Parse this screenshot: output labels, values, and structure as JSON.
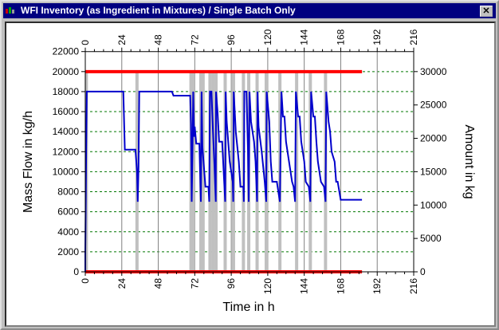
{
  "window": {
    "title": "WFI Inventory (as Ingredient in Mixtures) / Single Batch Only",
    "close_label": "✕",
    "title_bar_color": "#000080"
  },
  "chart_data": {
    "type": "line",
    "xlabel": "Time in h",
    "ylabel_left": "Mass Flow in kg/h",
    "ylabel_right": "Amount in kg",
    "xlim": [
      0,
      216
    ],
    "x_ticks": [
      "0",
      "24",
      "48",
      "72",
      "96",
      "120",
      "144",
      "168",
      "192",
      "216"
    ],
    "ylim_left": [
      0,
      22000
    ],
    "y_ticks_left": [
      "0",
      "2000",
      "4000",
      "6000",
      "8000",
      "10000",
      "12000",
      "14000",
      "16000",
      "18000",
      "20000",
      "22000"
    ],
    "ylim_right": [
      0,
      33000
    ],
    "y_ticks_right": [
      "0",
      "5000",
      "10000",
      "15000",
      "20000",
      "25000",
      "30000"
    ],
    "grid": true,
    "colors": {
      "inventory": "#0000cc",
      "limits": "#ff0000",
      "mass_flow": "#c0c0c0",
      "grid": "#007700"
    },
    "limit_lines_kg": [
      {
        "value": 30000,
        "x": [
          0,
          182
        ]
      },
      {
        "value": 0,
        "x": [
          0,
          182
        ]
      }
    ],
    "mass_flow_bars": {
      "value_kg_per_h": 20000,
      "times_h": [
        0.7,
        34,
        69.5,
        71,
        76,
        77.5,
        82,
        84,
        86,
        92,
        97.5,
        104,
        107.5,
        113,
        119,
        128,
        139,
        148,
        158
      ]
    },
    "inventory_series_kg_per_h_axis": [
      [
        0,
        0
      ],
      [
        0,
        2000
      ],
      [
        0.3,
        7000
      ],
      [
        0.6,
        12000
      ],
      [
        1,
        18000
      ],
      [
        25,
        18000
      ],
      [
        26,
        12200
      ],
      [
        33,
        12200
      ],
      [
        34,
        10000
      ],
      [
        34.5,
        7000
      ],
      [
        35,
        10500
      ],
      [
        35.5,
        18000
      ],
      [
        57,
        18000
      ],
      [
        58,
        17600
      ],
      [
        69,
        17600
      ],
      [
        69.5,
        14800
      ],
      [
        70,
        7000
      ],
      [
        70.5,
        12000
      ],
      [
        71,
        18000
      ],
      [
        71.5,
        13500
      ],
      [
        72,
        14500
      ],
      [
        73,
        12800
      ],
      [
        75,
        12800
      ],
      [
        75.5,
        10000
      ],
      [
        76,
        7000
      ],
      [
        76.5,
        18000
      ],
      [
        77,
        12500
      ],
      [
        78,
        10500
      ],
      [
        79,
        8500
      ],
      [
        81,
        8500
      ],
      [
        81.5,
        7000
      ],
      [
        82,
        18000
      ],
      [
        83,
        18000
      ],
      [
        84,
        14000
      ],
      [
        85,
        10500
      ],
      [
        85.8,
        7000
      ],
      [
        86,
        18000
      ],
      [
        87,
        16000
      ],
      [
        88,
        13000
      ],
      [
        90,
        13000
      ],
      [
        91,
        10000
      ],
      [
        92,
        7000
      ],
      [
        92.3,
        18000
      ],
      [
        93,
        15000
      ],
      [
        95,
        11000
      ],
      [
        97,
        9000
      ],
      [
        97.3,
        7000
      ],
      [
        97.6,
        18000
      ],
      [
        99,
        14000
      ],
      [
        101,
        11000
      ],
      [
        102,
        8500
      ],
      [
        104,
        8500
      ],
      [
        104.3,
        7000
      ],
      [
        104.6,
        18000
      ],
      [
        106,
        18000
      ],
      [
        107,
        12000
      ],
      [
        107.5,
        7000
      ],
      [
        108,
        18000
      ],
      [
        109,
        15000
      ],
      [
        111,
        13000
      ],
      [
        112,
        11000
      ],
      [
        113,
        7000
      ],
      [
        113.3,
        18000
      ],
      [
        114,
        14500
      ],
      [
        116,
        12000
      ],
      [
        118,
        9000
      ],
      [
        119,
        7000
      ],
      [
        119.3,
        18000
      ],
      [
        121,
        15000
      ],
      [
        122,
        11000
      ],
      [
        123,
        9000
      ],
      [
        126,
        9000
      ],
      [
        127,
        8000
      ],
      [
        128,
        7000
      ],
      [
        128.5,
        13000
      ],
      [
        129,
        18000
      ],
      [
        130,
        15500
      ],
      [
        131,
        15500
      ],
      [
        132,
        13000
      ],
      [
        134,
        11000
      ],
      [
        136,
        9000
      ],
      [
        137,
        8500
      ],
      [
        138,
        7000
      ],
      [
        138.5,
        18000
      ],
      [
        140,
        15500
      ],
      [
        141,
        15500
      ],
      [
        142,
        13000
      ],
      [
        144,
        11000
      ],
      [
        145,
        9000
      ],
      [
        147,
        8500
      ],
      [
        148,
        7000
      ],
      [
        148.5,
        18000
      ],
      [
        150,
        15500
      ],
      [
        151,
        15500
      ],
      [
        152,
        13000
      ],
      [
        153,
        11000
      ],
      [
        155,
        9000
      ],
      [
        157,
        8500
      ],
      [
        158,
        7000
      ],
      [
        158.5,
        18000
      ],
      [
        160,
        15000
      ],
      [
        161,
        14000
      ],
      [
        162,
        12000
      ],
      [
        164,
        11000
      ],
      [
        165,
        9000
      ],
      [
        166,
        9000
      ],
      [
        168,
        7200
      ],
      [
        182,
        7200
      ]
    ]
  }
}
